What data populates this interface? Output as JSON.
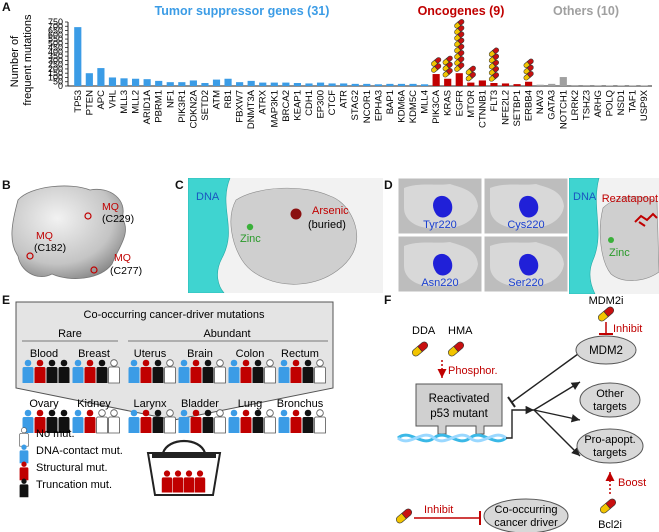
{
  "panel_labels": {
    "a": "A",
    "b": "B",
    "c": "C",
    "d": "D",
    "e": "E",
    "f": "F"
  },
  "chart_data": {
    "type": "bar",
    "ylabel": "Number of\nfrequent mutations",
    "yticks": [
      0,
      50,
      100,
      150,
      200,
      250,
      300,
      350,
      400,
      450,
      500,
      550,
      600,
      650,
      700,
      750
    ],
    "ylim": [
      0,
      750
    ],
    "groups": [
      {
        "name": "Tumor suppressor genes (31)",
        "color": "#3b9ce6"
      },
      {
        "name": "Oncogenes (9)",
        "color": "#c00000"
      },
      {
        "name": "Others (10)",
        "color": "#a0a0a0"
      }
    ],
    "categories": [
      "TP53",
      "PTEN",
      "APC",
      "VHL",
      "MLL3",
      "MLL2",
      "ARID1A",
      "PBRM1",
      "NF1",
      "PIK3R1",
      "CDKN2A",
      "SETD2",
      "ATM",
      "RB1",
      "FBXW7",
      "DNMT3A",
      "ATRX",
      "MAP3K1",
      "BRCA2",
      "KEAP1",
      "CDH1",
      "EP300",
      "CTCF",
      "ATR",
      "STAG2",
      "NCOR1",
      "EPHA3",
      "BAP1",
      "KDM6A",
      "KDM5C",
      "MLL4",
      "PIK3CA",
      "KRAS",
      "EGFR",
      "MTOR",
      "CTNNB1",
      "FLT3",
      "NFE2L2",
      "SETBP1",
      "ERBB4",
      "NAV3",
      "GATA3",
      "NOTCH1",
      "LRRK2",
      "TSHZ3",
      "ARHG",
      "POLQ",
      "NSD1",
      "TAF1",
      "USP9X"
    ],
    "values": [
      690,
      150,
      210,
      100,
      90,
      85,
      80,
      60,
      45,
      45,
      65,
      35,
      75,
      85,
      45,
      60,
      40,
      40,
      40,
      35,
      30,
      40,
      30,
      30,
      25,
      25,
      20,
      25,
      25,
      25,
      20,
      140,
      85,
      150,
      40,
      65,
      35,
      30,
      22,
      50,
      15,
      25,
      105,
      10,
      10,
      8,
      5,
      5,
      5,
      5
    ],
    "category_group": [
      0,
      0,
      0,
      0,
      0,
      0,
      0,
      0,
      0,
      0,
      0,
      0,
      0,
      0,
      0,
      0,
      0,
      0,
      0,
      0,
      0,
      0,
      0,
      0,
      0,
      0,
      0,
      0,
      0,
      0,
      0,
      1,
      1,
      1,
      1,
      1,
      1,
      1,
      1,
      1,
      2,
      2,
      2,
      2,
      2,
      2,
      2,
      2,
      2,
      2
    ],
    "drug_icon_counts": {
      "PIK3CA": 2,
      "KRAS": 3,
      "EGFR": 8,
      "MTOR": 2,
      "CTNNB1": 0,
      "FLT3": 5,
      "NFE2L2": 0,
      "SETBP1": 0,
      "ERBB4": 3
    }
  },
  "panel_b": {
    "labels": [
      "MQ",
      "(C229)",
      "MQ",
      "(C182)",
      "MQ",
      "(C277)"
    ]
  },
  "panel_c": {
    "dna": "DNA",
    "arsenic": "Arsenic",
    "buried": "(buried)",
    "zinc": "Zinc"
  },
  "panel_d": {
    "tiles": [
      "Tyr220",
      "Cys220",
      "Asn220",
      "Ser220"
    ],
    "dna": "DNA",
    "drug": "Rezatapopt",
    "zinc": "Zinc"
  },
  "panel_e": {
    "title": "Co-occurring cancer-driver mutations",
    "rare": "Rare",
    "abundant": "Abundant",
    "tissues": [
      {
        "name": "Blood",
        "pattern": [
          "blue",
          "red",
          "black",
          "black"
        ]
      },
      {
        "name": "Breast",
        "pattern": [
          "blue",
          "red",
          "black",
          "white"
        ]
      },
      {
        "name": "Uterus",
        "pattern": [
          "blue",
          "red",
          "black",
          "white"
        ]
      },
      {
        "name": "Brain",
        "pattern": [
          "blue",
          "red",
          "black",
          "white"
        ]
      },
      {
        "name": "Colon",
        "pattern": [
          "blue",
          "red",
          "black",
          "white"
        ]
      },
      {
        "name": "Rectum",
        "pattern": [
          "blue",
          "red",
          "black",
          "white"
        ]
      },
      {
        "name": "Ovary",
        "pattern": [
          "blue",
          "red",
          "black",
          "black"
        ]
      },
      {
        "name": "Kidney",
        "pattern": [
          "blue",
          "red",
          "white",
          "white"
        ]
      },
      {
        "name": "Larynx",
        "pattern": [
          "blue",
          "red",
          "black",
          "white"
        ]
      },
      {
        "name": "Bladder",
        "pattern": [
          "blue",
          "red",
          "black",
          "white"
        ]
      },
      {
        "name": "Lung",
        "pattern": [
          "blue",
          "red",
          "black",
          "white"
        ]
      },
      {
        "name": "Bronchus",
        "pattern": [
          "blue",
          "red",
          "black",
          "white"
        ]
      }
    ],
    "legend": [
      {
        "label": "No mut.",
        "color": "#ffffff"
      },
      {
        "label": "DNA-contact mut.",
        "color": "#3b9ce6"
      },
      {
        "label": "Structural mut.",
        "color": "#c00000"
      },
      {
        "label": "Truncation mut.",
        "color": "#111111"
      }
    ]
  },
  "panel_f": {
    "dda": "DDA",
    "hma": "HMA",
    "phosphor": "Phosphor.",
    "mdm2i": "MDM2i",
    "inhibit": "Inhibit",
    "p53_line1": "Reactivated",
    "p53_line2": "p53 mutant",
    "mdm2": "MDM2",
    "other_line1": "Other",
    "other_line2": "targets",
    "proapopt_line1": "Pro-apopt.",
    "proapopt_line2": "targets",
    "boost": "Boost",
    "bcl2i": "Bcl2i",
    "inhibit2": "Inhibit",
    "driver_line1": "Co-occurring",
    "driver_line2": "cancer driver"
  },
  "colors": {
    "tsg": "#3b9ce6",
    "onc": "#c00000",
    "other": "#a0a0a0",
    "dna": "#3fd4d0",
    "protein": "#c8c8c8",
    "pill_yellow": "#f2c400",
    "pill_red": "#c81010"
  }
}
